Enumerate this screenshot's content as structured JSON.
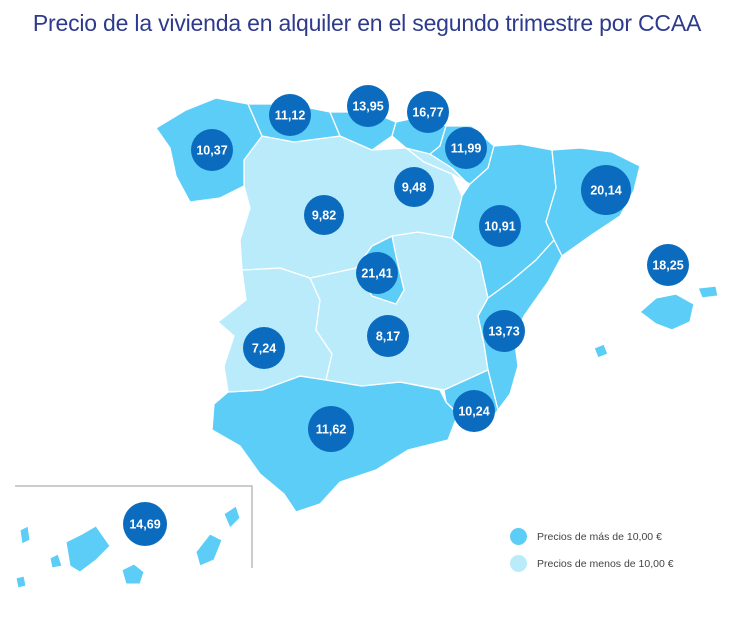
{
  "title": "Precio de la vivienda en alquiler en el segundo trimestre por CCAA",
  "colors": {
    "high": "#5ccdf6",
    "low": "#b9ebfb",
    "bubble": "#0b6cbf",
    "title": "#2e3b8c"
  },
  "legend": {
    "high_label": "Precios de más de 10,00 €",
    "low_label": "Precios de menos de 10,00 €"
  },
  "regions": [
    {
      "name": "Galicia",
      "price": "10,37",
      "group": "high"
    },
    {
      "name": "Asturias",
      "price": "11,12",
      "group": "high"
    },
    {
      "name": "Cantabria",
      "price": "13,95",
      "group": "high"
    },
    {
      "name": "País Vasco",
      "price": "16,77",
      "group": "high"
    },
    {
      "name": "Navarra",
      "price": "11,99",
      "group": "high"
    },
    {
      "name": "La Rioja",
      "price": "9,48",
      "group": "low"
    },
    {
      "name": "Castilla y León",
      "price": "9,82",
      "group": "low"
    },
    {
      "name": "Aragón",
      "price": "10,91",
      "group": "high"
    },
    {
      "name": "Cataluña",
      "price": "20,14",
      "group": "high"
    },
    {
      "name": "Baleares",
      "price": "18,25",
      "group": "high"
    },
    {
      "name": "Madrid",
      "price": "21,41",
      "group": "high"
    },
    {
      "name": "Castilla-La Mancha",
      "price": "8,17",
      "group": "low"
    },
    {
      "name": "Extremadura",
      "price": "7,24",
      "group": "low"
    },
    {
      "name": "Comunidad Valenciana",
      "price": "13,73",
      "group": "high"
    },
    {
      "name": "Murcia",
      "price": "10,24",
      "group": "high"
    },
    {
      "name": "Andalucía",
      "price": "11,62",
      "group": "high"
    },
    {
      "name": "Canarias",
      "price": "14,69",
      "group": "high"
    }
  ]
}
